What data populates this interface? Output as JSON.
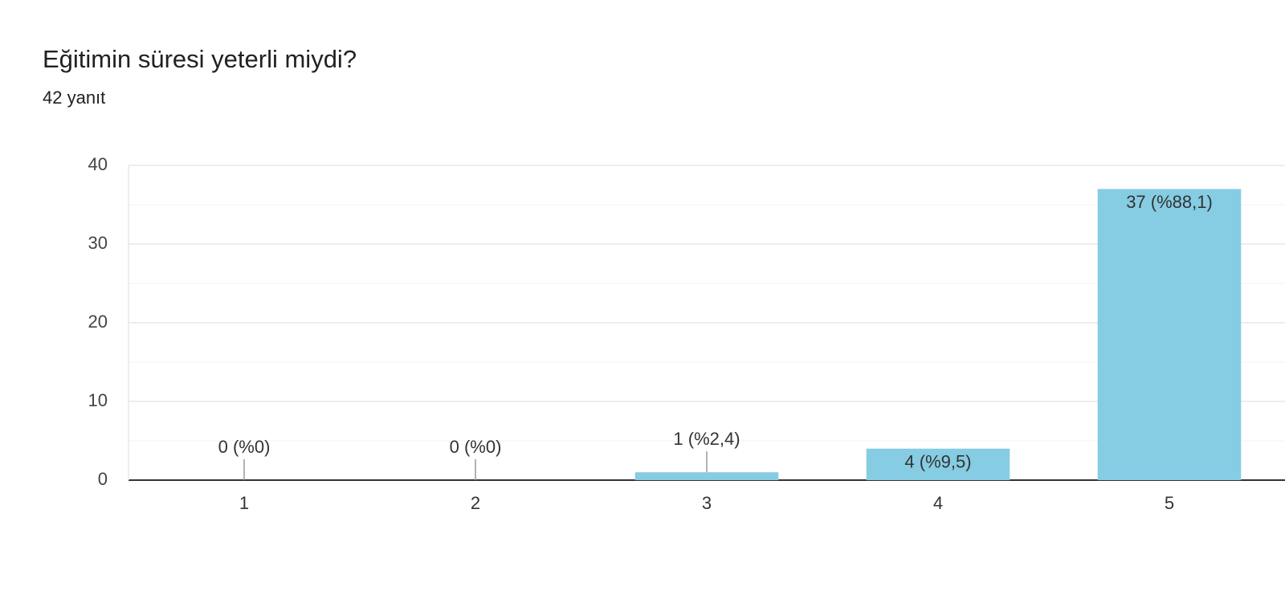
{
  "chart_data": {
    "type": "bar",
    "title": "Eğitimin süresi yeterli miydi?",
    "subtitle": "42 yanıt",
    "categories": [
      "1",
      "2",
      "3",
      "4",
      "5"
    ],
    "values": [
      0,
      0,
      1,
      4,
      37
    ],
    "value_labels": [
      "0 (%0)",
      "0 (%0)",
      "1 (%2,4)",
      "4 (%9,5)",
      "37 (%88,1)"
    ],
    "color": "#86cce3",
    "ylim": [
      0,
      40
    ],
    "yticks": [
      0,
      10,
      20,
      30,
      40
    ],
    "minor_yticks": [
      5,
      15,
      25,
      35
    ],
    "grid": true
  }
}
